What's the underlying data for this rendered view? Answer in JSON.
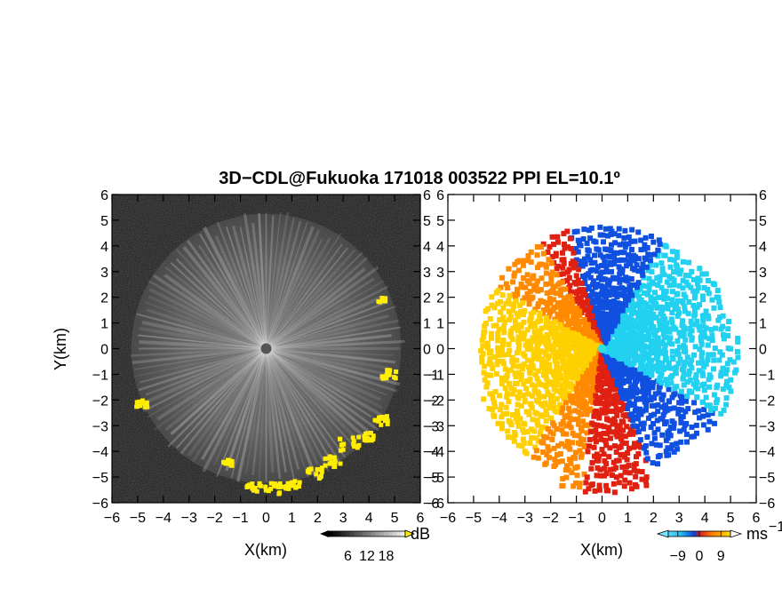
{
  "chart_data": {
    "type": "heatmap",
    "title": "3D−CDL@Fukuoka 171018 003522 PPI EL=10.1º",
    "panels": [
      {
        "name": "reflectivity",
        "xlabel": "X(km)",
        "ylabel": "Y(km)",
        "xlim": [
          -6,
          6
        ],
        "ylim": [
          -6,
          6
        ],
        "xticks": [
          "−6",
          "−5",
          "−4",
          "−3",
          "−2",
          "−1",
          "0",
          "1",
          "2",
          "3",
          "4",
          "5",
          "6"
        ],
        "yticks": [
          "6",
          "5",
          "4",
          "3",
          "2",
          "1",
          "0",
          "−1",
          "−2",
          "−3",
          "−4",
          "−5",
          "−6"
        ],
        "background_color": "#1a1a1a",
        "highlight_color": "#ffee00",
        "colorbar": {
          "unit": "dB",
          "ticks": [
            "6",
            "12",
            "18"
          ],
          "range": [
            0,
            24
          ]
        }
      },
      {
        "name": "doppler-velocity",
        "xlabel": "X(km)",
        "xlim": [
          -6,
          6
        ],
        "ylim": [
          -6,
          6
        ],
        "xticks": [
          "−6",
          "−5",
          "−4",
          "−3",
          "−2",
          "−1",
          "0",
          "1",
          "2",
          "3",
          "4",
          "5",
          "6"
        ],
        "yticks": [
          "6",
          "5",
          "4",
          "3",
          "2",
          "1",
          "0",
          "−1",
          "−2",
          "−3",
          "−4",
          "−5",
          "−6"
        ],
        "colorbar": {
          "unit": "ms",
          "unit_superscript": "−1",
          "ticks": [
            "−9",
            "0",
            "9"
          ],
          "range": [
            -13,
            13
          ]
        }
      }
    ],
    "colors": {
      "cyan": "#22d0f0",
      "blue": "#1050e0",
      "red": "#e02010",
      "orange": "#ff8a00",
      "yellow": "#ffd000"
    }
  }
}
